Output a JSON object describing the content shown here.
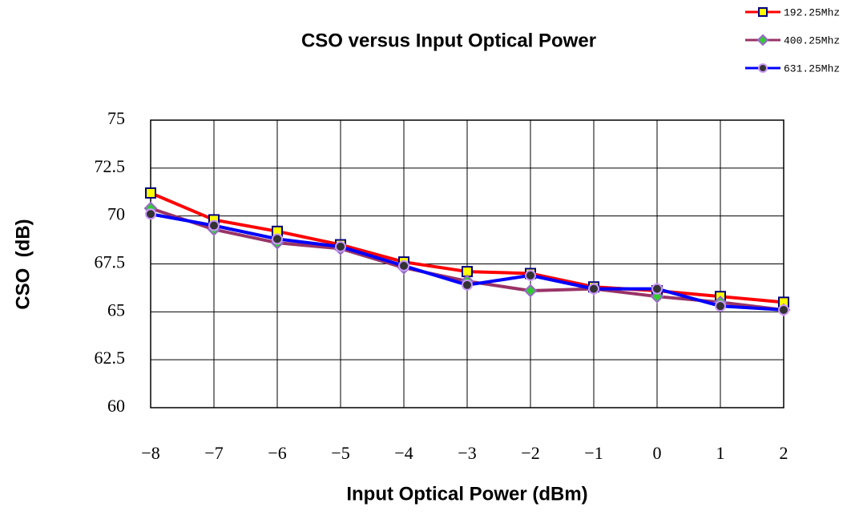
{
  "chart_data": {
    "type": "line",
    "title": "CSO versus Input Optical Power",
    "x_label": "Input Optical Power (dBm)",
    "y_label": "CSO  (dB)",
    "x": [
      -8,
      -7,
      -6,
      -5,
      -4,
      -3,
      -2,
      -1,
      0,
      1,
      2
    ],
    "xlim": [
      -8,
      2
    ],
    "xticks": [
      {
        "value": -8,
        "label": "−8"
      },
      {
        "value": -7,
        "label": "−7"
      },
      {
        "value": -6,
        "label": "−6"
      },
      {
        "value": -5,
        "label": "−5"
      },
      {
        "value": -4,
        "label": "−4"
      },
      {
        "value": -3,
        "label": "−3"
      },
      {
        "value": -2,
        "label": "−2"
      },
      {
        "value": -1,
        "label": "−1"
      },
      0,
      1,
      2
    ],
    "ylim": [
      60,
      75
    ],
    "yticks": [
      60,
      62.5,
      65,
      67.5,
      70,
      72.5,
      75
    ],
    "grid": true,
    "legend": "upper right",
    "series": [
      {
        "name": "192.25Mhz",
        "color": "#ff0000",
        "marker": "square",
        "marker_color": "#ffff00",
        "marker_edge": "#000080",
        "values": [
          71.2,
          69.8,
          69.2,
          68.5,
          67.6,
          67.1,
          67.0,
          66.3,
          66.1,
          65.8,
          65.5
        ]
      },
      {
        "name": "400.25Mhz",
        "color": "#993366",
        "marker": "diamond",
        "marker_color": "#33cc33",
        "marker_edge": "#9966cc",
        "values": [
          70.4,
          69.3,
          68.6,
          68.3,
          67.3,
          66.6,
          66.1,
          66.2,
          65.8,
          65.5,
          65.1
        ]
      },
      {
        "name": "631.25Mhz",
        "color": "#0000ff",
        "marker": "circle",
        "marker_color": "#333333",
        "marker_edge": "#cc99ff",
        "values": [
          70.1,
          69.5,
          68.8,
          68.4,
          67.4,
          66.4,
          66.9,
          66.2,
          66.2,
          65.3,
          65.1
        ]
      }
    ]
  }
}
